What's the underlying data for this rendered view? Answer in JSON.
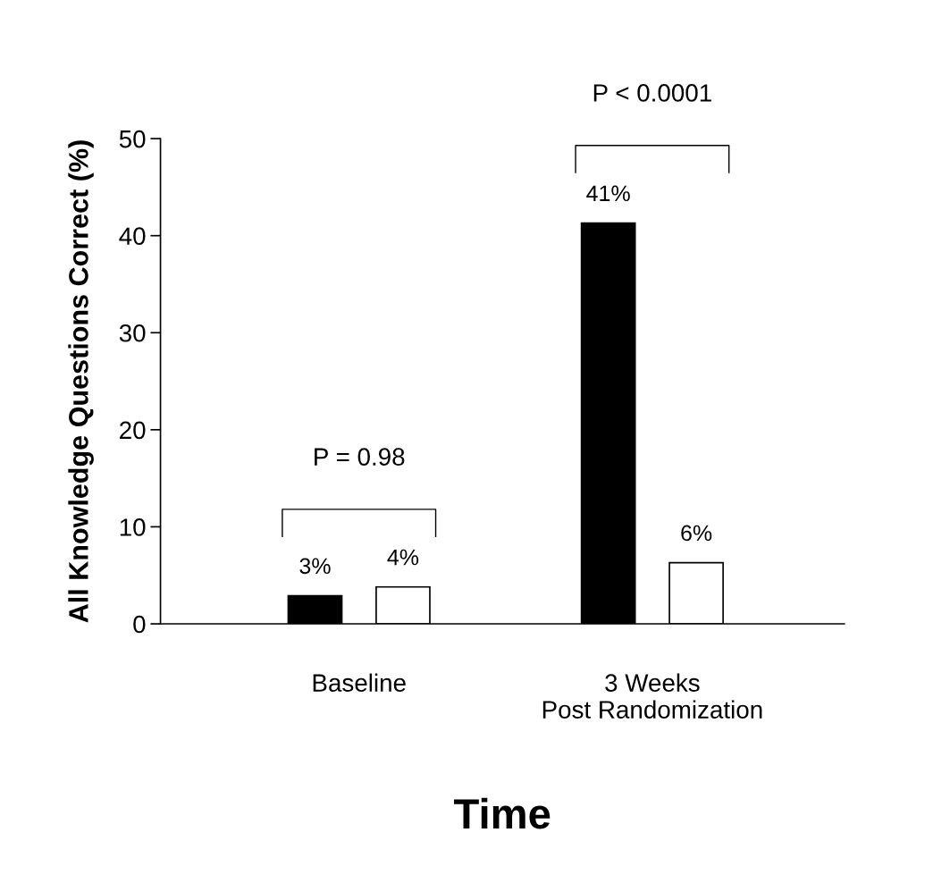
{
  "chart_data": {
    "type": "bar",
    "xlabel": "Time",
    "ylabel": "All Knowledge Questions Correct (%)",
    "categories": [
      "Baseline",
      "3 Weeks\nPost Randomization"
    ],
    "series": [
      {
        "color": "#000000",
        "values": [
          2.9,
          41.3
        ],
        "value_labels": [
          "3%",
          "41%"
        ]
      },
      {
        "color": "#ffffff",
        "values": [
          3.8,
          6.3
        ],
        "value_labels": [
          "4%",
          "6%"
        ]
      }
    ],
    "ylim": [
      0,
      50
    ],
    "yticks": [
      0,
      10,
      20,
      30,
      40,
      50
    ],
    "grid": false,
    "legend": false,
    "annotations": [
      "P = 0.98",
      "P < 0.0001"
    ]
  }
}
